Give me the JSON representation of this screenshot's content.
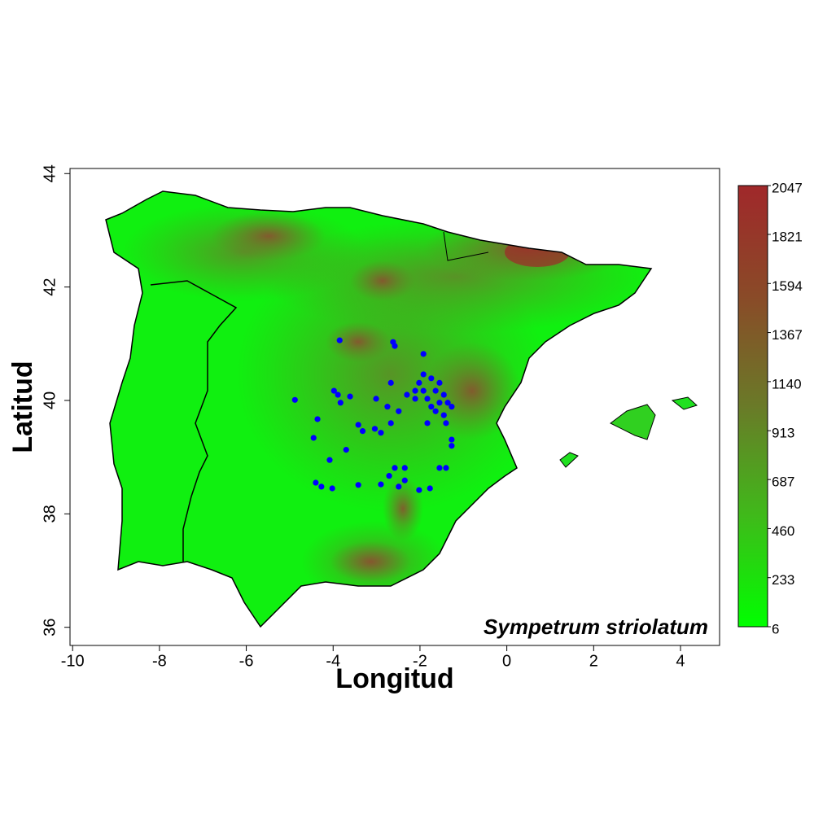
{
  "chart_data": {
    "type": "scatter",
    "annotation": "Sympetrum striolatum",
    "xlabel": "Longitud",
    "ylabel": "Latitud",
    "xlim": [
      -10.06,
      4.9
    ],
    "ylim": [
      35.68,
      44.09
    ],
    "xticks": [
      -10,
      -8,
      -6,
      -4,
      -2,
      0,
      2,
      4
    ],
    "yticks": [
      36,
      38,
      40,
      42,
      44
    ],
    "series": [
      {
        "color": "#0000ff",
        "x": [
          -3.85,
          -2.62,
          -2.58,
          -4.88,
          -3.98,
          -3.89,
          -3.83,
          -3.61,
          -3.01,
          -2.75,
          -2.49,
          -2.67,
          -2.3,
          -2.11,
          -1.92,
          -2.02,
          -1.92,
          -1.83,
          -1.74,
          -1.64,
          -1.55,
          -1.45,
          -1.36,
          -1.27,
          -1.55,
          -1.74,
          -1.92,
          -2.11,
          -1.64,
          -1.45,
          -1.4,
          -1.83,
          -1.27,
          -1.27,
          -4.36,
          -4.45,
          -3.7,
          -3.42,
          -3.32,
          -3.04,
          -2.9,
          -4.08,
          -4.4,
          -4.27,
          -4.02,
          -3.42,
          -2.9,
          -2.71,
          -2.58,
          -2.35,
          -2.49,
          -2.35,
          -2.02,
          -1.77,
          -1.55,
          -1.4,
          -2.67
        ],
        "y": [
          41.06,
          41.03,
          40.96,
          40.01,
          40.17,
          40.1,
          39.96,
          40.07,
          40.03,
          39.89,
          39.81,
          40.31,
          40.1,
          40.03,
          40.82,
          40.31,
          40.17,
          40.03,
          39.89,
          39.81,
          39.96,
          39.74,
          39.96,
          39.89,
          40.31,
          40.39,
          40.46,
          40.17,
          40.17,
          40.1,
          39.6,
          39.6,
          39.31,
          39.2,
          39.67,
          39.34,
          39.13,
          39.57,
          39.46,
          39.5,
          39.43,
          38.95,
          38.55,
          38.48,
          38.45,
          38.51,
          38.52,
          38.67,
          38.81,
          38.81,
          38.48,
          38.59,
          38.42,
          38.45,
          38.81,
          38.81,
          39.6
        ]
      }
    ],
    "colorbar": {
      "lim": [
        6,
        2047
      ],
      "ticks": [
        6,
        233,
        460,
        687,
        913,
        1140,
        1367,
        1594,
        1821,
        2047
      ],
      "colors": [
        "#00ff00",
        "#3fba1a",
        "#6a7a28",
        "#8a4a28",
        "#a0282a"
      ]
    }
  }
}
